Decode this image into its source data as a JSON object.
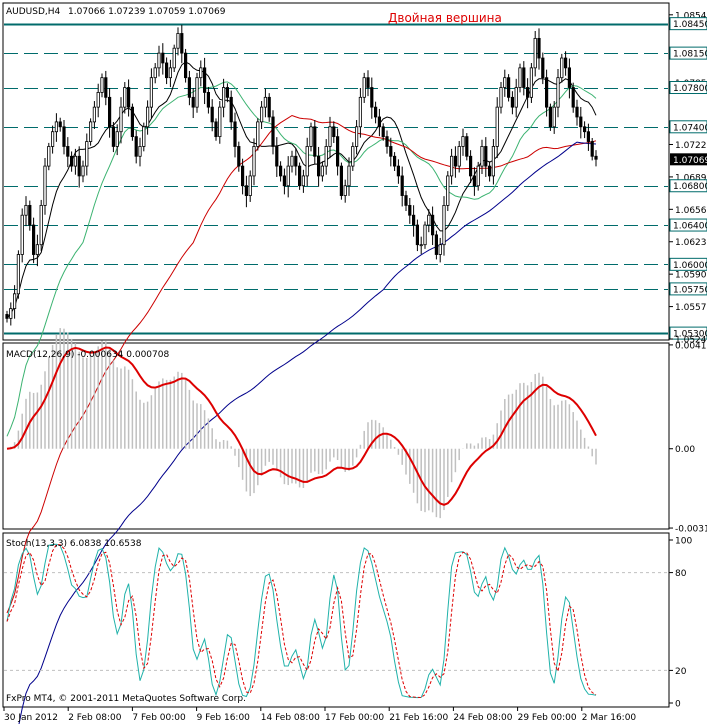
{
  "chart_data": [
    {
      "type": "candlestick",
      "symbol_header": "AUDUSD,H4",
      "ohlc_header": "1.07066 1.07239 1.07059 1.07069",
      "annotation": "Двойная вершина",
      "ylim": [
        1.0524,
        1.0865
      ],
      "y_ticks": [
        "1.08540",
        "1.08450",
        "1.08150",
        "1.07850",
        "1.07800",
        "1.07400",
        "1.07220",
        "1.07069",
        "1.06890",
        "1.06800",
        "1.06560",
        "1.06400",
        "1.06230",
        "1.06000",
        "1.05900",
        "1.05750",
        "1.05570",
        "1.05300",
        "1.05240"
      ],
      "levels": [
        1.0845,
        1.0815,
        1.078,
        1.074,
        1.068,
        1.064,
        1.06,
        1.0575,
        1.053
      ],
      "solid_levels": [
        1.0845,
        1.053
      ],
      "current_price": 1.07069,
      "current_price_label": "1.07069",
      "approx_closes": [
        1.0545,
        1.0555,
        1.057,
        1.061,
        1.065,
        1.066,
        1.064,
        1.061,
        1.062,
        1.066,
        1.07,
        1.072,
        1.0735,
        1.0745,
        1.074,
        1.072,
        1.071,
        1.07,
        1.071,
        1.069,
        1.07,
        1.0725,
        1.0745,
        1.076,
        1.0775,
        1.079,
        1.077,
        1.074,
        1.072,
        1.0735,
        1.076,
        1.078,
        1.076,
        1.073,
        1.071,
        1.072,
        1.074,
        1.076,
        1.079,
        1.08,
        1.0815,
        1.0805,
        1.079,
        1.08,
        1.082,
        1.0835,
        1.0815,
        1.079,
        1.077,
        1.076,
        1.079,
        1.08,
        1.0775,
        1.076,
        1.0745,
        1.073,
        1.076,
        1.078,
        1.077,
        1.0745,
        1.072,
        1.07,
        1.068,
        1.067,
        1.069,
        1.072,
        1.0745,
        1.076,
        1.077,
        1.075,
        1.072,
        1.07,
        1.069,
        1.068,
        1.07,
        1.071,
        1.07,
        1.068,
        1.069,
        1.072,
        1.074,
        1.071,
        1.069,
        1.07,
        1.072,
        1.074,
        1.073,
        1.07,
        1.067,
        1.068,
        1.07,
        1.072,
        1.074,
        1.077,
        1.079,
        1.078,
        1.076,
        1.075,
        1.074,
        1.073,
        1.072,
        1.071,
        1.07,
        1.069,
        1.067,
        1.066,
        1.065,
        1.064,
        1.062,
        1.062,
        1.064,
        1.065,
        1.063,
        1.061,
        1.062,
        1.066,
        1.069,
        1.071,
        1.07,
        1.072,
        1.073,
        1.071,
        1.069,
        1.068,
        1.07,
        1.072,
        1.07,
        1.069,
        1.072,
        1.076,
        1.078,
        1.079,
        1.077,
        1.076,
        1.078,
        1.08,
        1.078,
        1.077,
        1.08,
        1.083,
        1.081,
        1.079,
        1.076,
        1.074,
        1.076,
        1.079,
        1.081,
        1.08,
        1.078,
        1.076,
        1.075,
        1.074,
        1.0735,
        1.0725,
        1.071,
        1.0707
      ]
    },
    {
      "type": "histogram",
      "label": "MACD(12,26,9) -0.000634 0.000708",
      "ylim": [
        -0.00314,
        0.00411
      ],
      "y_ticks": [
        "0.004114",
        "0.00",
        "-0.003142"
      ],
      "signal_line_color": "#dd0000",
      "histogram_color": "#c0c0c0"
    },
    {
      "type": "line",
      "label": "Stoch(13,3,3) 6.0838 10.6538",
      "ylim": [
        0,
        100
      ],
      "y_ticks": [
        "100",
        "80",
        "20",
        "0"
      ],
      "main_color": "#20b2aa",
      "signal_color": "#dd0000"
    }
  ],
  "x_labels": [
    "30 Jan 2012",
    "2 Feb 08:00",
    "7 Feb 00:00",
    "9 Feb 16:00",
    "14 Feb 08:00",
    "17 Feb 00:00",
    "21 Feb 16:00",
    "24 Feb 08:00",
    "29 Feb 00:00",
    "2 Mar 16:00"
  ],
  "footer": "FxPro MT4, © 2001-2011 MetaQuotes Software Corp.",
  "colors": {
    "level_line": "#006b6b",
    "price_tag_bg": "#000000",
    "ma_black": "#000000",
    "ma_green": "#3cb371",
    "ma_red": "#cc0000",
    "ma_blue": "#00008b",
    "annotation": "#dd0000"
  }
}
